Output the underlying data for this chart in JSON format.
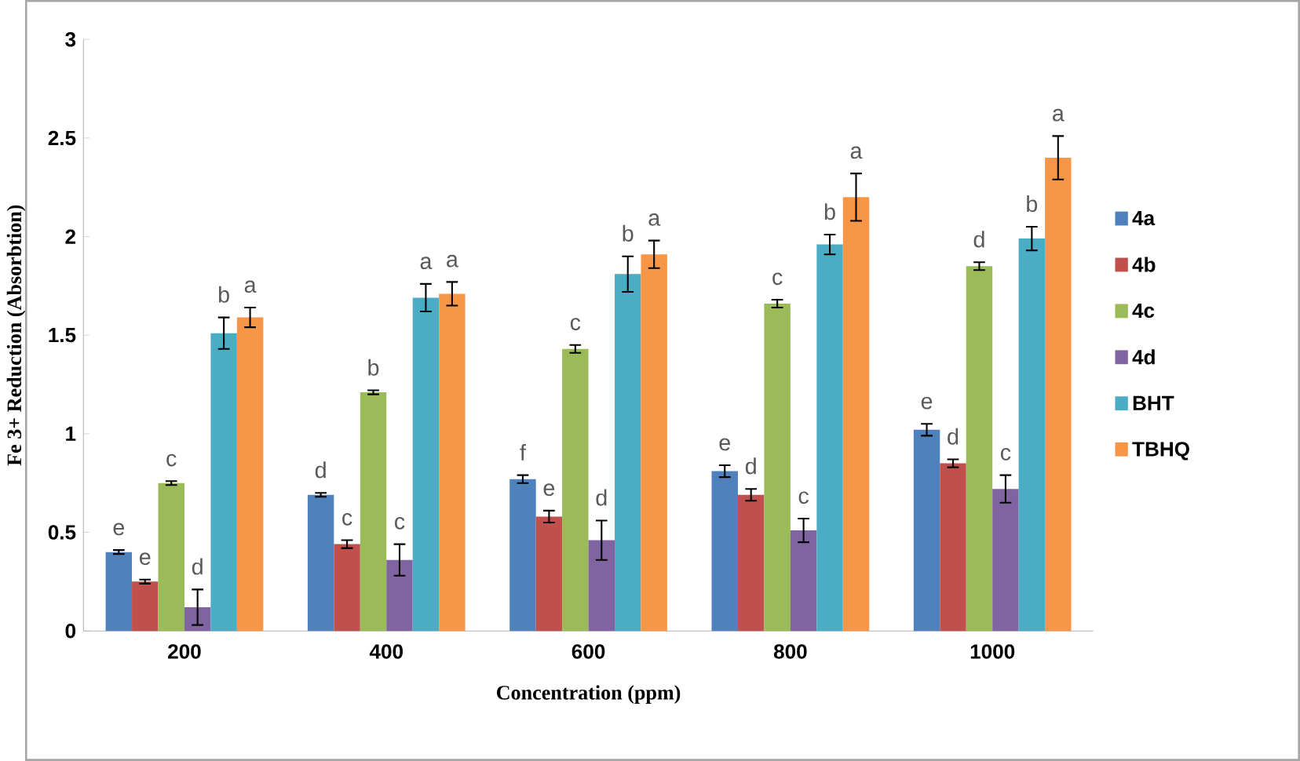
{
  "chart_data": {
    "type": "bar",
    "xlabel": "Concentration (ppm)",
    "ylabel": "Fe 3+ Reduction (Absorbtion)",
    "categories": [
      "200",
      "400",
      "600",
      "800",
      "1000"
    ],
    "series": [
      {
        "name": "4a",
        "color": "#4f81bd",
        "values": [
          0.4,
          0.69,
          0.77,
          0.81,
          1.02
        ],
        "errors": [
          0.01,
          0.01,
          0.02,
          0.03,
          0.03
        ],
        "value_labels": [
          "e",
          "d",
          "f",
          "e",
          "e"
        ]
      },
      {
        "name": "4b",
        "color": "#c0504d",
        "values": [
          0.25,
          0.44,
          0.58,
          0.69,
          0.85
        ],
        "errors": [
          0.01,
          0.02,
          0.03,
          0.03,
          0.02
        ],
        "value_labels": [
          "e",
          "c",
          "e",
          "d",
          "d"
        ]
      },
      {
        "name": "4c",
        "color": "#9bbb59",
        "values": [
          0.75,
          1.21,
          1.43,
          1.66,
          1.85
        ],
        "errors": [
          0.01,
          0.01,
          0.02,
          0.02,
          0.02
        ],
        "value_labels": [
          "c",
          "b",
          "c",
          "c",
          "d"
        ]
      },
      {
        "name": "4d",
        "color": "#8064a2",
        "values": [
          0.12,
          0.36,
          0.46,
          0.51,
          0.72
        ],
        "errors": [
          0.09,
          0.08,
          0.1,
          0.06,
          0.07
        ],
        "value_labels": [
          "d",
          "c",
          "d",
          "c",
          "c"
        ]
      },
      {
        "name": "BHT",
        "color": "#4bacc6",
        "values": [
          1.51,
          1.69,
          1.81,
          1.96,
          1.99
        ],
        "errors": [
          0.08,
          0.07,
          0.09,
          0.05,
          0.06
        ],
        "value_labels": [
          "b",
          "a",
          "b",
          "b",
          "b"
        ]
      },
      {
        "name": "TBHQ",
        "color": "#f79646",
        "values": [
          1.59,
          1.71,
          1.91,
          2.2,
          2.4
        ],
        "errors": [
          0.05,
          0.06,
          0.07,
          0.12,
          0.11
        ],
        "value_labels": [
          "a",
          "a",
          "a",
          "a",
          "a"
        ]
      }
    ],
    "ylim": [
      0,
      3
    ],
    "yticks": [
      0,
      0.5,
      1,
      1.5,
      2,
      2.5,
      3
    ],
    "grid": false,
    "legend": "right"
  }
}
